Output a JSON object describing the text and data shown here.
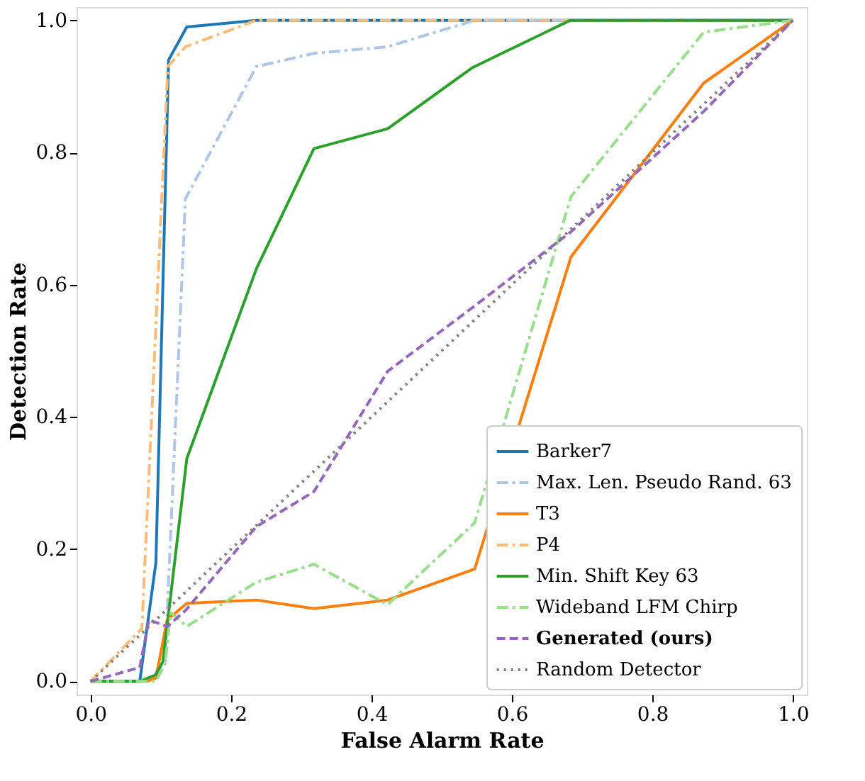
{
  "chart_data": {
    "type": "line",
    "xlabel": "False Alarm Rate",
    "ylabel": "Detection Rate",
    "xlim": [
      -0.02,
      1.02
    ],
    "ylim": [
      -0.02,
      1.02
    ],
    "xticks": [
      {
        "value": 0,
        "label": "0.0"
      },
      {
        "value": 0.2,
        "label": "0.2"
      },
      {
        "value": 0.4,
        "label": "0.4"
      },
      {
        "value": 0.6,
        "label": "0.6"
      },
      {
        "value": 0.8,
        "label": "0.8"
      },
      {
        "value": 1,
        "label": "1.0"
      }
    ],
    "yticks": [
      {
        "value": 0,
        "label": "0.0"
      },
      {
        "value": 0.2,
        "label": "0.2"
      },
      {
        "value": 0.4,
        "label": "0.4"
      },
      {
        "value": 0.6,
        "label": "0.6"
      },
      {
        "value": 0.8,
        "label": "0.8"
      },
      {
        "value": 1,
        "label": "1.0"
      }
    ],
    "grid": false,
    "legend": "bottom right",
    "series": [
      {
        "name": "Barker7",
        "color": "#1f77b4",
        "line_style": "solid",
        "x": [
          0,
          0.07,
          0.093,
          0.111,
          0.137,
          0.236,
          1.0
        ],
        "values": [
          0,
          0,
          0.18,
          0.94,
          0.99,
          1.0,
          1.0
        ]
      },
      {
        "name": "Max. Len. Pseudo Rand. 63",
        "color": "#aec7e8",
        "line_style": "dashdot",
        "x": [
          0,
          0.083,
          0.106,
          0.135,
          0.236,
          0.318,
          0.423,
          0.547,
          1.0
        ],
        "values": [
          0,
          0,
          0.03,
          0.73,
          0.93,
          0.95,
          0.96,
          1.0,
          1.0
        ]
      },
      {
        "name": "T3",
        "color": "#ff7f0e",
        "line_style": "solid",
        "x": [
          0,
          0.08,
          0.093,
          0.109,
          0.137,
          0.236,
          0.318,
          0.423,
          0.547,
          0.684,
          0.873,
          1.0
        ],
        "values": [
          0,
          0,
          0.005,
          0.093,
          0.118,
          0.123,
          0.11,
          0.123,
          0.17,
          0.642,
          0.905,
          1.0
        ]
      },
      {
        "name": "P4",
        "color": "#ffbb78",
        "line_style": "dashdot",
        "x": [
          0,
          0.073,
          0.11,
          0.135,
          0.236,
          1.0
        ],
        "values": [
          0,
          0.08,
          0.93,
          0.96,
          1.0,
          1.0
        ]
      },
      {
        "name": "Min. Shift Key 63",
        "color": "#2ca02c",
        "line_style": "solid",
        "x": [
          0,
          0.07,
          0.093,
          0.103,
          0.137,
          0.236,
          0.318,
          0.423,
          0.543,
          0.683,
          1.0
        ],
        "values": [
          0,
          0,
          0.01,
          0.03,
          0.337,
          0.624,
          0.806,
          0.836,
          0.928,
          1.0,
          1.0
        ]
      },
      {
        "name": "Wideband LFM Chirp",
        "color": "#98df8a",
        "line_style": "dashdot",
        "x": [
          0,
          0.093,
          0.106,
          0.114,
          0.137,
          0.236,
          0.318,
          0.423,
          0.547,
          0.684,
          0.873,
          1.0
        ],
        "values": [
          0,
          0,
          0.026,
          0.104,
          0.083,
          0.15,
          0.177,
          0.116,
          0.24,
          0.733,
          0.982,
          1.0
        ]
      },
      {
        "name": "Generated (ours)",
        "color": "#9467bd",
        "line_style": "dashed",
        "x": [
          0,
          0.07,
          0.083,
          0.109,
          0.135,
          0.236,
          0.318,
          0.423,
          0.547,
          0.684,
          0.873,
          1.0
        ],
        "values": [
          0,
          0.021,
          0.093,
          0.083,
          0.107,
          0.234,
          0.287,
          0.469,
          0.568,
          0.68,
          0.862,
          1.0
        ]
      },
      {
        "name": "Random Detector",
        "color": "#7f7f7f",
        "line_style": "dotted",
        "x": [
          0,
          1.0
        ],
        "values": [
          0,
          1.0
        ]
      }
    ]
  }
}
